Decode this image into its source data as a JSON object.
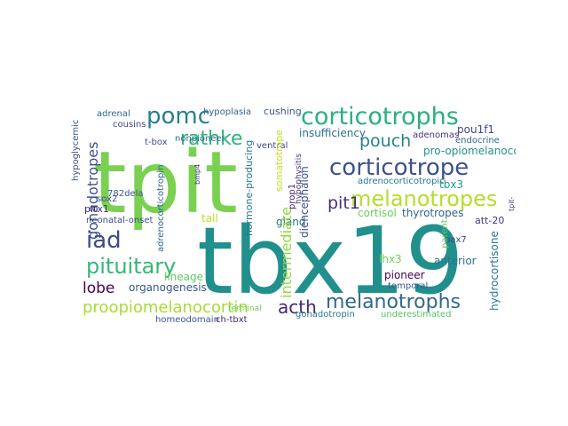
{
  "words": [
    {
      "text": "tbx19",
      "color": "#21908d"
    },
    {
      "text": "tpit",
      "color": "#7ad151"
    },
    {
      "text": "corticotrophs",
      "color": "#2ab07f"
    },
    {
      "text": "corticotrope",
      "color": "#3b528b"
    },
    {
      "text": "melanotropes",
      "color": "#b5de2b"
    },
    {
      "text": "pomc",
      "color": "#26828e"
    },
    {
      "text": "rathke",
      "color": "#2eb37c"
    },
    {
      "text": "iad",
      "color": "#3e4a89"
    },
    {
      "text": "pituitary",
      "color": "#35b779"
    },
    {
      "text": "proopiomelanocortin",
      "color": "#a8db34"
    },
    {
      "text": "acth",
      "color": "#482475"
    },
    {
      "text": "melanotrophs",
      "color": "#31688e"
    },
    {
      "text": "lobe",
      "color": "#440154"
    },
    {
      "text": "pouch",
      "color": "#27808e"
    },
    {
      "text": "pit1",
      "color": "#472d7b"
    },
    {
      "text": "gonadotropes",
      "color": "#3b528b"
    },
    {
      "text": "insufficiency",
      "color": "#90d743"
    },
    {
      "text": "intermediate",
      "color": "#2c728e"
    },
    {
      "text": "pro-opiomelanocortin",
      "color": "#21918c"
    },
    {
      "text": "adenomas",
      "color": "#46327e"
    },
    {
      "text": "pou1f1",
      "color": "#3e4989"
    },
    {
      "text": "endocrine",
      "color": "#31688e"
    },
    {
      "text": "adrenocorticotropic",
      "color": "#2a788e"
    },
    {
      "text": "tbx3",
      "color": "#1f998a"
    },
    {
      "text": "cortisol",
      "color": "#6ccd5a"
    },
    {
      "text": "thyrotropes",
      "color": "#33638d"
    },
    {
      "text": "att-20",
      "color": "#453781"
    },
    {
      "text": "organogenesis",
      "color": "#38588c"
    },
    {
      "text": "lineage",
      "color": "#5ec962"
    },
    {
      "text": "tall",
      "color": "#c2df23"
    },
    {
      "text": "gland",
      "color": "#2d708e"
    },
    {
      "text": "neonatal-onset",
      "color": "#3d4d8a"
    },
    {
      "text": "pitx1",
      "color": "#482878"
    },
    {
      "text": "782dela",
      "color": "#39568c"
    },
    {
      "text": "sox2",
      "color": "#3b528b"
    },
    {
      "text": "t-box",
      "color": "#3e4c8a"
    },
    {
      "text": "nonpioneer",
      "color": "#2e6e8e"
    },
    {
      "text": "cousins",
      "color": "#3f4788"
    },
    {
      "text": "adrenal",
      "color": "#31688e"
    },
    {
      "text": "hypoplasia",
      "color": "#33638d"
    },
    {
      "text": "cushing",
      "color": "#39568c"
    },
    {
      "text": "somatotrope",
      "color": "#c8e020"
    },
    {
      "text": "ventral",
      "color": "#3e4c8a"
    },
    {
      "text": "hormone-producing",
      "color": "#2a788e"
    },
    {
      "text": "diencephalon",
      "color": "#3a548c"
    },
    {
      "text": "prop1",
      "color": "#481b6d"
    },
    {
      "text": "hypophysitis",
      "color": "#46327e"
    },
    {
      "text": "adrenocorticotropin",
      "color": "#31688e"
    },
    {
      "text": "gonadotropin",
      "color": "#2a788e"
    },
    {
      "text": "underestimated",
      "color": "#52c569"
    },
    {
      "text": "homeodomain",
      "color": "#3b528b"
    },
    {
      "text": "ch-tbxt",
      "color": "#482878"
    },
    {
      "text": "pioneer",
      "color": "#440154"
    },
    {
      "text": "temporal",
      "color": "#38598c"
    },
    {
      "text": "anterior",
      "color": "#2c728e"
    },
    {
      "text": "pax7",
      "color": "#3e4989"
    },
    {
      "text": "lhx3",
      "color": "#73d056"
    },
    {
      "text": "parent",
      "color": "#5cc863"
    },
    {
      "text": "hydrocortisone",
      "color": "#2c738e"
    },
    {
      "text": "terminal",
      "color": "#6ece58"
    },
    {
      "text": "hypoglycemic",
      "color": "#3b528b"
    },
    {
      "text": "bmp4",
      "color": "#46337f"
    },
    {
      "text": "tpit-",
      "color": "#3e4c8a"
    }
  ]
}
